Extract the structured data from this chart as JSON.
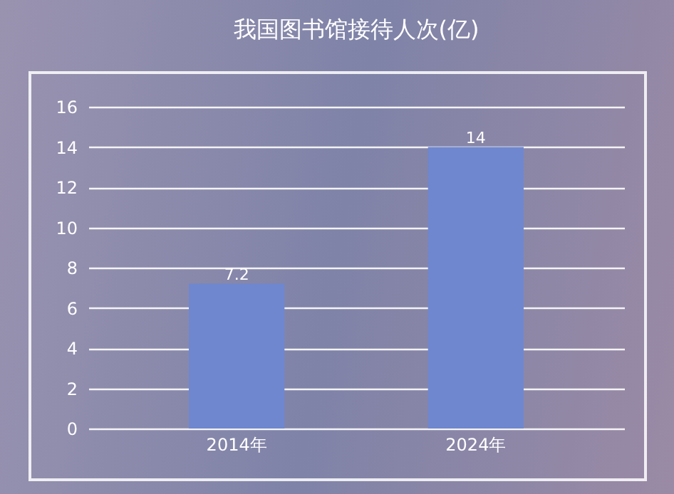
{
  "chart_data": {
    "type": "bar",
    "title": "我国图书馆接待人次(亿)",
    "categories": [
      "2014年",
      "2024年"
    ],
    "values": [
      7.2,
      14
    ],
    "color": "#6f87cf",
    "ylim": [
      0,
      16
    ],
    "yticks": [
      0,
      2,
      4,
      6,
      8,
      10,
      12,
      14,
      16
    ],
    "grid": "y",
    "data_labels": true
  }
}
